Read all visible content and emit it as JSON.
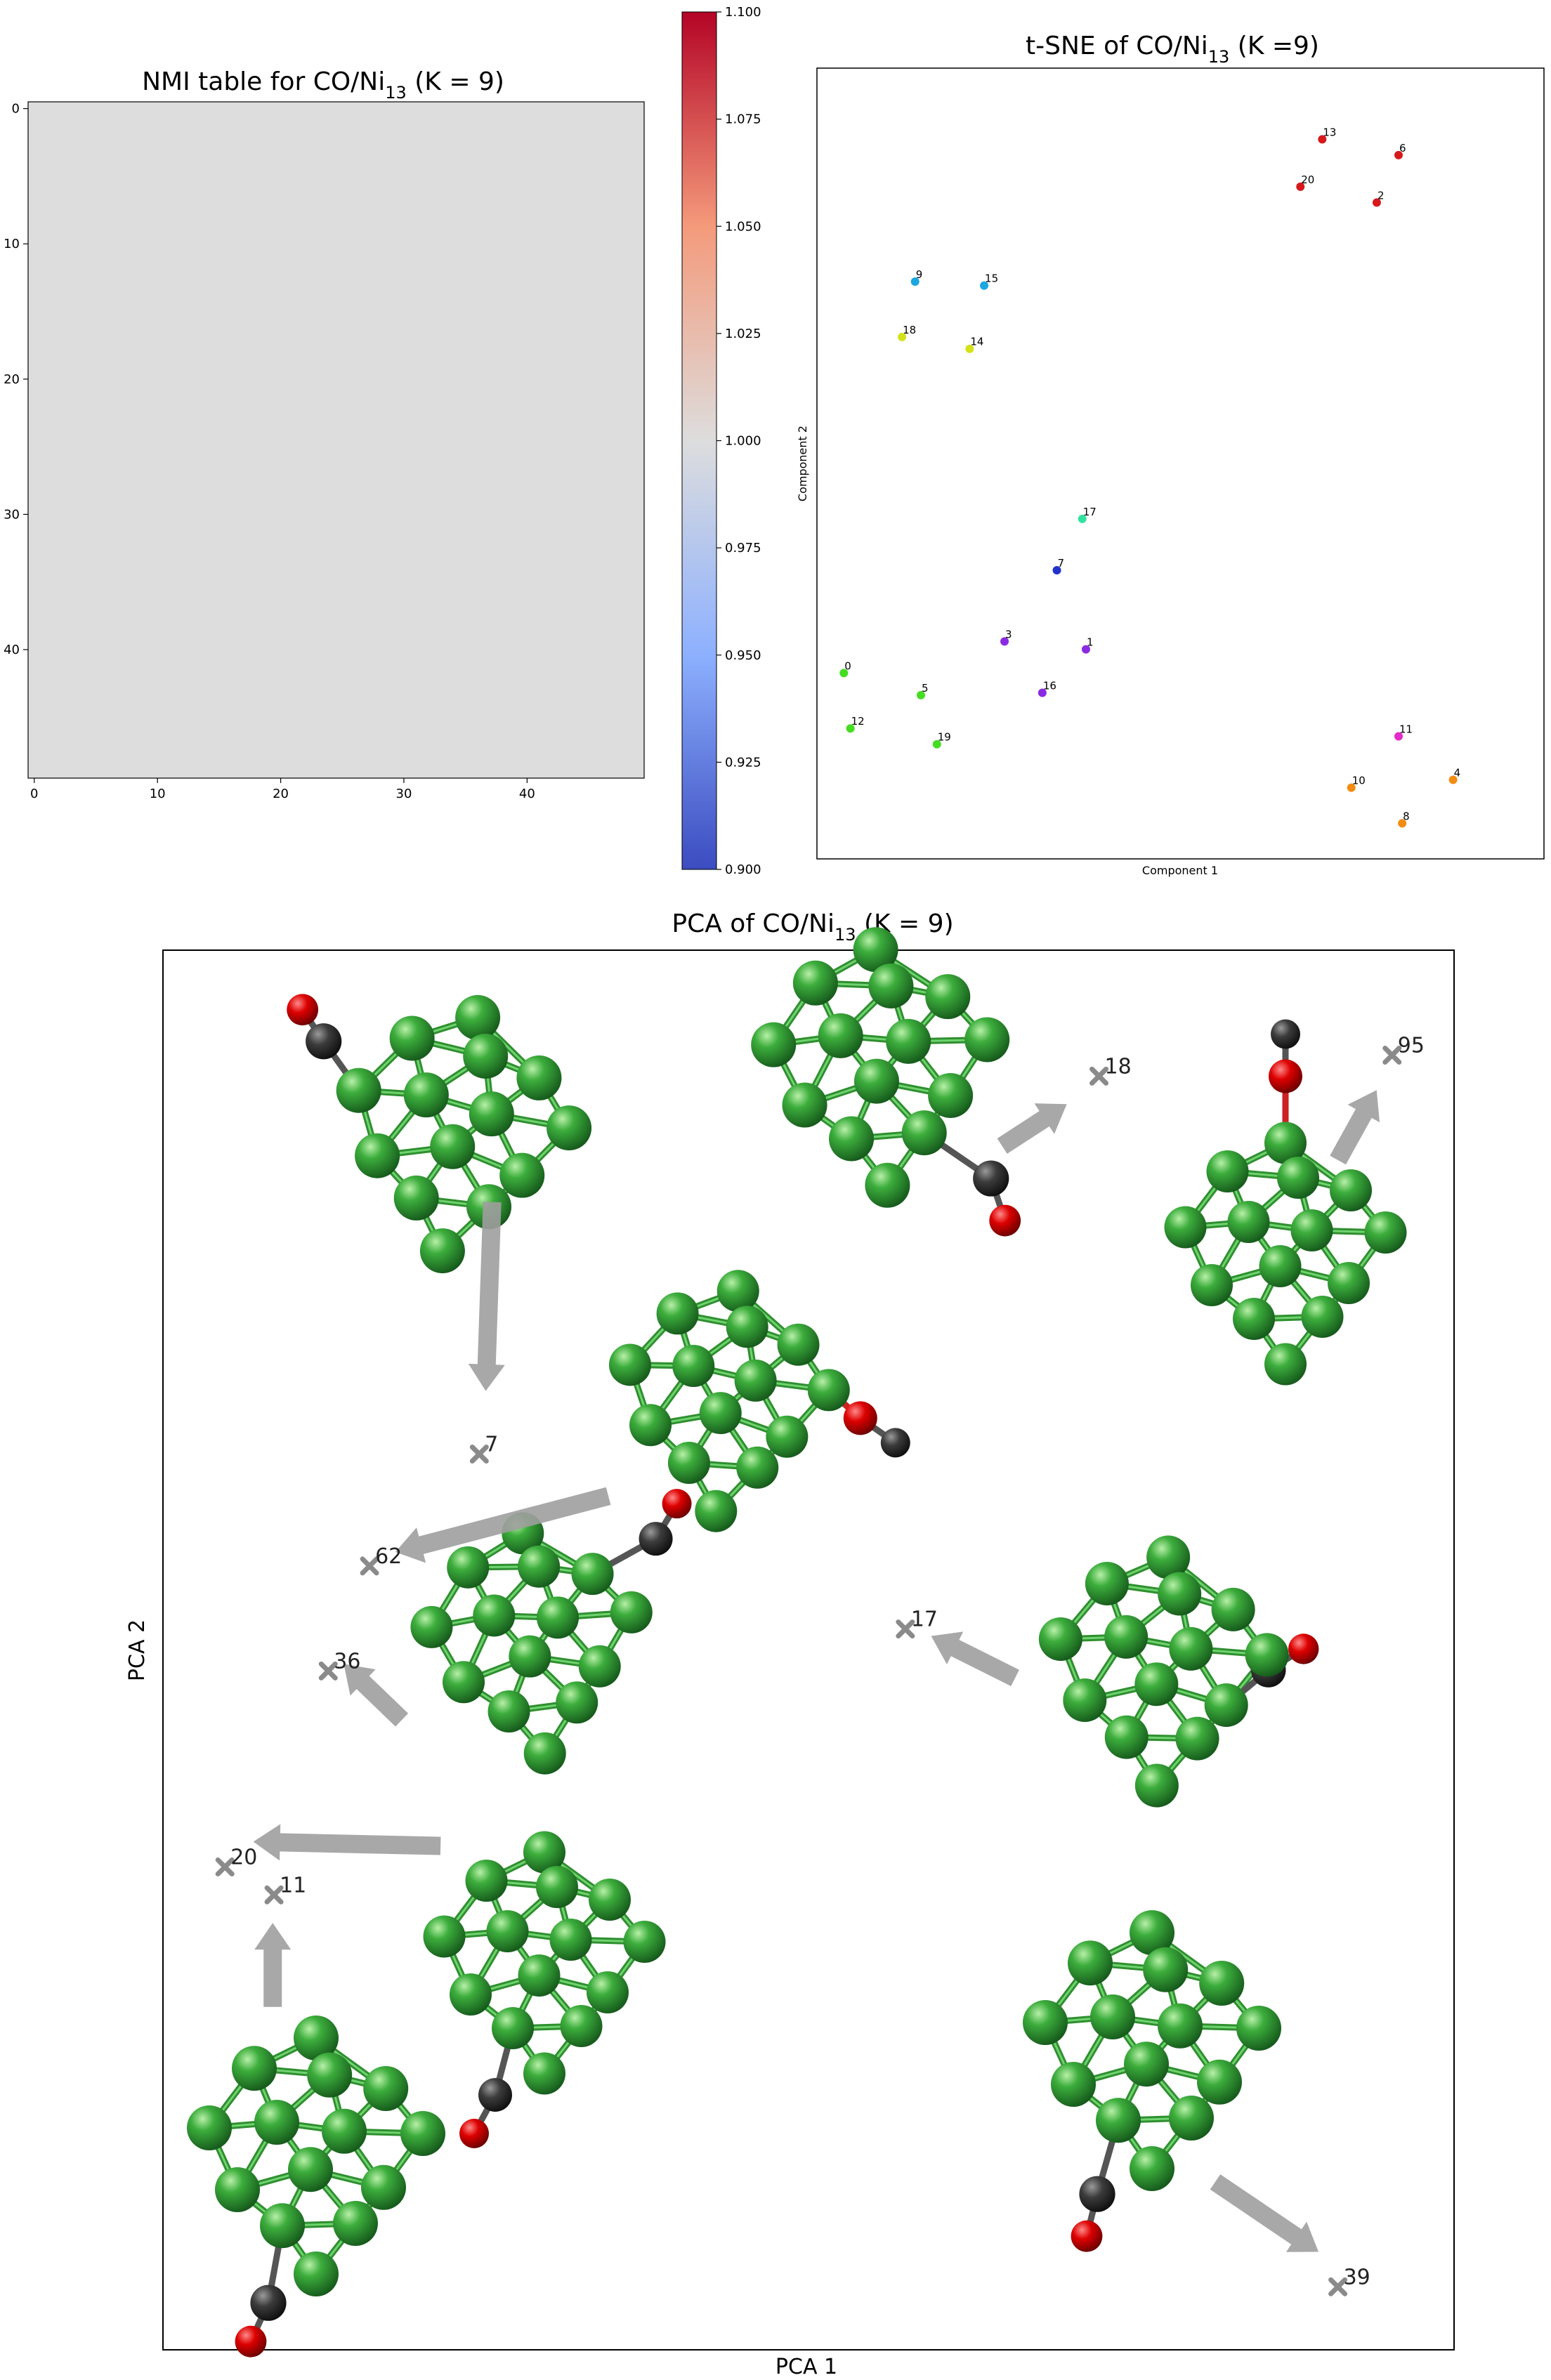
{
  "chart_data": [
    {
      "type": "heatmap",
      "title_main": "NMI table for CO/Ni",
      "title_sub": "13",
      "title_tail": " (K = 9)",
      "value": 1.0,
      "x_ticks": [
        "0",
        "10",
        "20",
        "30",
        "40"
      ],
      "y_ticks": [
        "0",
        "10",
        "20",
        "30",
        "40"
      ],
      "xlim": [
        -0.5,
        49.5
      ],
      "ylim": [
        -0.5,
        49.5
      ],
      "colormap": "coolwarm",
      "fill_color": "#dddddd",
      "colorbar": {
        "vmin": 0.9,
        "vmax": 1.1,
        "ticks": [
          "1.100",
          "1.075",
          "1.050",
          "1.025",
          "1.000",
          "0.975",
          "0.950",
          "0.925",
          "0.900"
        ]
      }
    },
    {
      "type": "scatter",
      "title_main": "t-SNE of CO/Ni",
      "title_sub": "13",
      "title_tail": " (K =9)",
      "xlabel": "Component 1",
      "ylabel": "Component 2",
      "xlim": [
        0,
        100
      ],
      "ylim": [
        0,
        100
      ],
      "points": [
        {
          "label": "13",
          "x": 69.5,
          "y": 91.0,
          "color": "#d7191c"
        },
        {
          "label": "6",
          "x": 80.0,
          "y": 89.0,
          "color": "#d7191c"
        },
        {
          "label": "20",
          "x": 66.5,
          "y": 85.0,
          "color": "#d7191c"
        },
        {
          "label": "2",
          "x": 77.0,
          "y": 83.0,
          "color": "#d7191c"
        },
        {
          "label": "9",
          "x": 13.5,
          "y": 73.0,
          "color": "#1ba7e0"
        },
        {
          "label": "15",
          "x": 23.0,
          "y": 72.5,
          "color": "#1ba7e0"
        },
        {
          "label": "18",
          "x": 11.7,
          "y": 66.0,
          "color": "#d4e21a"
        },
        {
          "label": "14",
          "x": 21.0,
          "y": 64.5,
          "color": "#d4e21a"
        },
        {
          "label": "17",
          "x": 36.5,
          "y": 43.0,
          "color": "#33e29e"
        },
        {
          "label": "7",
          "x": 33.0,
          "y": 36.5,
          "color": "#2233cc"
        },
        {
          "label": "3",
          "x": 25.8,
          "y": 27.5,
          "color": "#8a2be2"
        },
        {
          "label": "1",
          "x": 37.0,
          "y": 26.5,
          "color": "#8a2be2"
        },
        {
          "label": "16",
          "x": 31.0,
          "y": 21.0,
          "color": "#8a2be2"
        },
        {
          "label": "0",
          "x": 3.7,
          "y": 23.5,
          "color": "#44dd22"
        },
        {
          "label": "5",
          "x": 14.3,
          "y": 20.7,
          "color": "#44dd22"
        },
        {
          "label": "12",
          "x": 4.6,
          "y": 16.5,
          "color": "#44dd22"
        },
        {
          "label": "19",
          "x": 16.5,
          "y": 14.5,
          "color": "#44dd22"
        },
        {
          "label": "11",
          "x": 80.0,
          "y": 15.5,
          "color": "#e22bc8"
        },
        {
          "label": "4",
          "x": 87.5,
          "y": 10.0,
          "color": "#f28c12"
        },
        {
          "label": "10",
          "x": 73.5,
          "y": 9.0,
          "color": "#f28c12"
        },
        {
          "label": "8",
          "x": 80.5,
          "y": 4.5,
          "color": "#f28c12"
        }
      ]
    },
    {
      "type": "scatter",
      "title_main": "PCA of CO/Ni",
      "title_sub": "13",
      "title_tail": " (K = 9)",
      "xlabel": "PCA 1",
      "ylabel": "PCA 2",
      "xlim": [
        0,
        100
      ],
      "ylim": [
        0,
        100
      ],
      "points": [
        {
          "label": "18",
          "x": 72.5,
          "y": 91.0
        },
        {
          "label": "95",
          "x": 95.2,
          "y": 92.5
        },
        {
          "label": "7",
          "x": 24.5,
          "y": 64.0
        },
        {
          "label": "62",
          "x": 16.0,
          "y": 56.0
        },
        {
          "label": "17",
          "x": 57.5,
          "y": 51.5
        },
        {
          "label": "36",
          "x": 12.8,
          "y": 48.5
        },
        {
          "label": "20",
          "x": 4.8,
          "y": 34.5
        },
        {
          "label": "11",
          "x": 8.6,
          "y": 32.5
        },
        {
          "label": "39",
          "x": 91.0,
          "y": 4.5
        }
      ],
      "arrows": [
        {
          "from": [
            25.5,
            82.0
          ],
          "to": [
            25.0,
            68.5
          ]
        },
        {
          "from": [
            65.0,
            86.0
          ],
          "to": [
            70.0,
            89.0
          ]
        },
        {
          "from": [
            91.0,
            85.0
          ],
          "to": [
            94.0,
            90.0
          ]
        },
        {
          "from": [
            34.5,
            61.0
          ],
          "to": [
            18.0,
            57.0
          ]
        },
        {
          "from": [
            66.0,
            48.0
          ],
          "to": [
            59.5,
            51.0
          ]
        },
        {
          "from": [
            18.5,
            45.0
          ],
          "to": [
            14.0,
            49.0
          ]
        },
        {
          "from": [
            21.5,
            36.0
          ],
          "to": [
            7.0,
            36.3
          ]
        },
        {
          "from": [
            8.5,
            24.5
          ],
          "to": [
            8.5,
            30.5
          ]
        },
        {
          "from": [
            81.5,
            12.0
          ],
          "to": [
            89.5,
            7.0
          ]
        }
      ]
    }
  ]
}
